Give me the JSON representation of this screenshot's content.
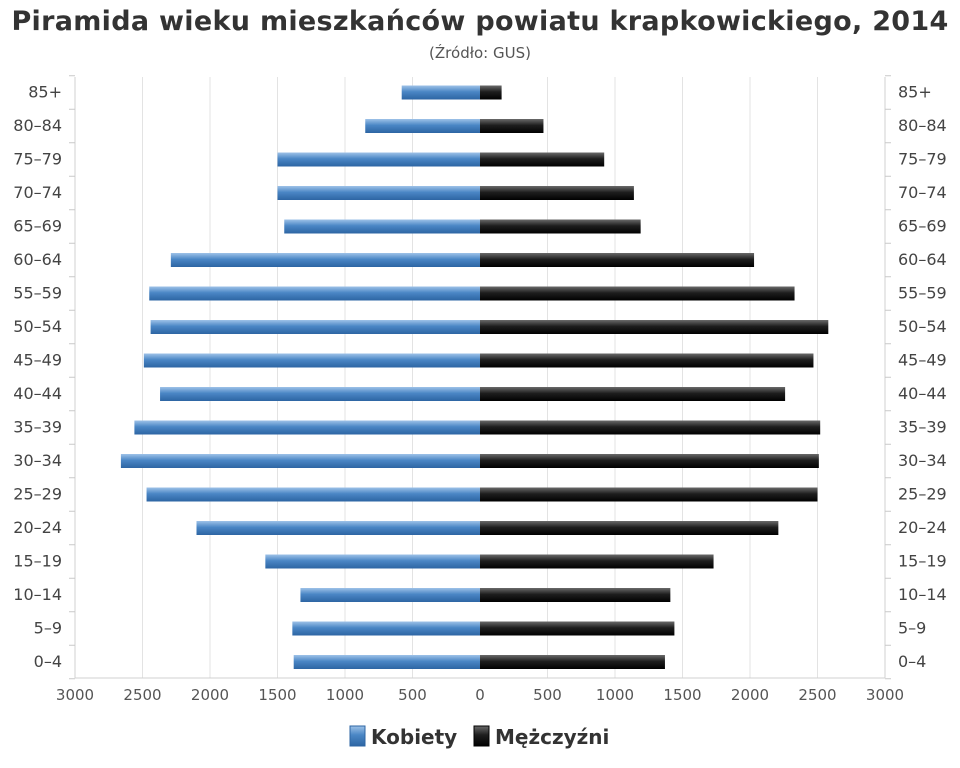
{
  "chart_data": {
    "type": "bar",
    "orientation": "horizontal-diverging",
    "title": "Piramida wieku mieszkańców powiatu krapkowickiego, 2014",
    "subtitle": "(Źródło: GUS)",
    "categories": [
      "0–4",
      "5–9",
      "10–14",
      "15–19",
      "20–24",
      "25–29",
      "30–34",
      "35–39",
      "40–44",
      "45–49",
      "50–54",
      "55–59",
      "60–64",
      "65–69",
      "70–74",
      "75–79",
      "80–84",
      "85+"
    ],
    "series": [
      {
        "name": "Kobiety",
        "color": "#4a86c5",
        "values": [
          1380,
          1390,
          1330,
          1590,
          2100,
          2470,
          2660,
          2560,
          2370,
          2490,
          2440,
          2450,
          2290,
          1450,
          1500,
          1500,
          850,
          580
        ]
      },
      {
        "name": "Mężczyźni",
        "color": "#222222",
        "values": [
          1370,
          1440,
          1410,
          1730,
          2210,
          2500,
          2510,
          2520,
          2260,
          2470,
          2580,
          2330,
          2030,
          1190,
          1140,
          920,
          470,
          160
        ]
      }
    ],
    "xlim": [
      -3000,
      3000
    ],
    "xticks": [
      "3000",
      "2500",
      "2000",
      "1500",
      "1000",
      "500",
      "0",
      "500",
      "1000",
      "1500",
      "2000",
      "2500",
      "3000"
    ],
    "grid": "vertical",
    "legend": "bottom-center"
  }
}
